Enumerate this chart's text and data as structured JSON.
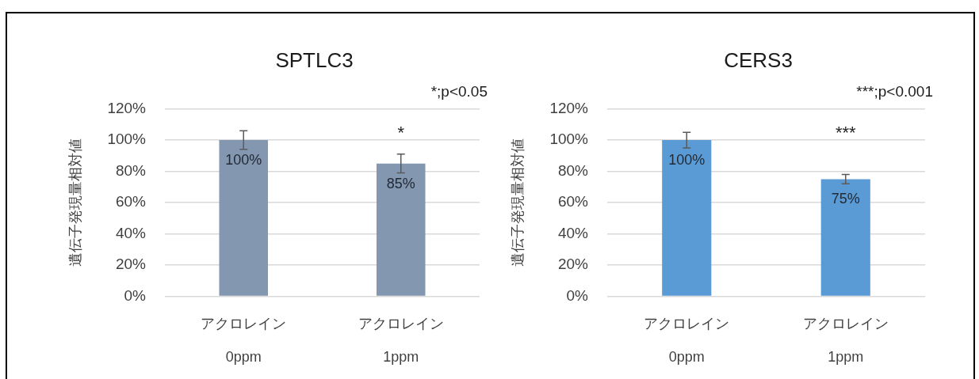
{
  "chart_data": [
    {
      "type": "bar",
      "title": "SPTLC3",
      "ylabel": "遺伝子発現量相対値",
      "categories": [
        "アクロレイン\n0ppm",
        "アクロレイン\n1ppm"
      ],
      "values": [
        100,
        85
      ],
      "errors": [
        6,
        6
      ],
      "color": "#8497b0",
      "value_labels": [
        "100%",
        "85%"
      ],
      "ylim": [
        0,
        120
      ],
      "yticks": [
        {
          "value": 0,
          "label": "0%"
        },
        {
          "value": 20,
          "label": "20%"
        },
        {
          "value": 40,
          "label": "40%"
        },
        {
          "value": 60,
          "label": "60%"
        },
        {
          "value": 80,
          "label": "80%"
        },
        {
          "value": 100,
          "label": "100%"
        },
        {
          "value": 120,
          "label": "120%"
        }
      ],
      "grid": "y",
      "annotations": [
        "*;p<0.05",
        "*"
      ]
    },
    {
      "type": "bar",
      "title": "CERS3",
      "ylabel": "遺伝子発現量相対値",
      "categories": [
        "アクロレイン\n0ppm",
        "アクロレイン\n1ppm"
      ],
      "values": [
        100,
        75
      ],
      "errors": [
        5,
        3
      ],
      "color": "#5b9bd5",
      "value_labels": [
        "100%",
        "75%"
      ],
      "ylim": [
        0,
        120
      ],
      "yticks": [
        {
          "value": 0,
          "label": "0%"
        },
        {
          "value": 20,
          "label": "20%"
        },
        {
          "value": 40,
          "label": "40%"
        },
        {
          "value": 60,
          "label": "60%"
        },
        {
          "value": 80,
          "label": "80%"
        },
        {
          "value": 100,
          "label": "100%"
        },
        {
          "value": 120,
          "label": "120%"
        }
      ],
      "grid": "y",
      "annotations": [
        "***;p<0.001",
        "***"
      ]
    }
  ]
}
